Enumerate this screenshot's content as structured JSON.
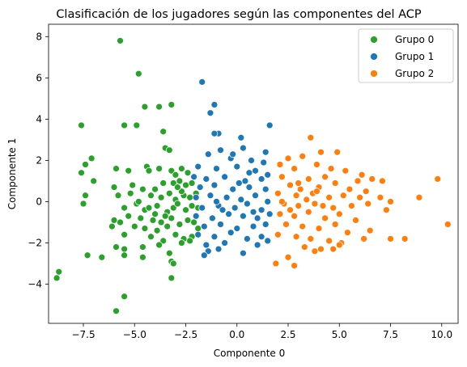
{
  "chart_data": {
    "type": "scatter",
    "title": "Clasificación de los jugadores según las componentes del ACP",
    "xlabel": "Componente 0",
    "ylabel": "Componente 1",
    "xlim": [
      -9.2,
      10.8
    ],
    "ylim": [
      -5.9,
      8.6
    ],
    "xticks": [
      "−7.5",
      "−5.0",
      "−2.5",
      "0.0",
      "2.5",
      "5.0",
      "7.5",
      "10.0"
    ],
    "xtick_values": [
      -7.5,
      -5.0,
      -2.5,
      0.0,
      2.5,
      5.0,
      7.5,
      10.0
    ],
    "yticks": [
      "−4",
      "−2",
      "0",
      "2",
      "4",
      "6",
      "8"
    ],
    "ytick_values": [
      -4,
      -2,
      0,
      2,
      4,
      6,
      8
    ],
    "grid": false,
    "legend_position": "top-right",
    "series": [
      {
        "name": "Grupo 0",
        "color": "#2ca02c",
        "points": [
          [
            -5.7,
            7.8
          ],
          [
            -4.8,
            6.2
          ],
          [
            -4.5,
            4.6
          ],
          [
            -3.8,
            4.6
          ],
          [
            -3.2,
            4.7
          ],
          [
            -7.6,
            3.7
          ],
          [
            -5.5,
            3.7
          ],
          [
            -4.9,
            3.7
          ],
          [
            -3.6,
            3.4
          ],
          [
            -3.5,
            2.6
          ],
          [
            -3.3,
            2.5
          ],
          [
            -7.1,
            2.1
          ],
          [
            -7.4,
            1.8
          ],
          [
            -7.6,
            1.4
          ],
          [
            -5.9,
            1.6
          ],
          [
            -5.3,
            1.5
          ],
          [
            -4.4,
            1.7
          ],
          [
            -4.3,
            1.5
          ],
          [
            -3.8,
            1.6
          ],
          [
            -3.2,
            1.5
          ],
          [
            -3.0,
            1.3
          ],
          [
            -2.7,
            1.6
          ],
          [
            -2.4,
            1.4
          ],
          [
            -7.0,
            1.0
          ],
          [
            -6.0,
            0.7
          ],
          [
            -5.1,
            0.8
          ],
          [
            -4.6,
            0.6
          ],
          [
            -4.0,
            0.6
          ],
          [
            -3.6,
            0.9
          ],
          [
            -3.1,
            0.9
          ],
          [
            -2.8,
            1.0
          ],
          [
            -2.5,
            0.8
          ],
          [
            -2.2,
            0.9
          ],
          [
            -7.4,
            0.3
          ],
          [
            -5.8,
            0.3
          ],
          [
            -5.2,
            0.4
          ],
          [
            -4.2,
            0.3
          ],
          [
            -3.7,
            0.2
          ],
          [
            -3.3,
            0.4
          ],
          [
            -3.0,
            0.1
          ],
          [
            -2.6,
            0.3
          ],
          [
            -2.3,
            0.2
          ],
          [
            -2.0,
            0.4
          ],
          [
            -7.5,
            -0.1
          ],
          [
            -5.5,
            -0.3
          ],
          [
            -4.9,
            -0.1
          ],
          [
            -4.5,
            -0.4
          ],
          [
            -3.9,
            -0.2
          ],
          [
            -3.4,
            -0.5
          ],
          [
            -3.1,
            -0.3
          ],
          [
            -2.9,
            -0.1
          ],
          [
            -2.5,
            -0.4
          ],
          [
            -2.2,
            -0.2
          ],
          [
            -1.9,
            -0.3
          ],
          [
            -6.0,
            -0.9
          ],
          [
            -5.3,
            -0.7
          ],
          [
            -4.7,
            -0.8
          ],
          [
            -4.1,
            -0.9
          ],
          [
            -3.7,
            -1.0
          ],
          [
            -3.2,
            -0.8
          ],
          [
            -2.8,
            -1.1
          ],
          [
            -2.4,
            -0.9
          ],
          [
            -2.1,
            -1.0
          ],
          [
            -5.0,
            -1.2
          ],
          [
            -4.5,
            -1.3
          ],
          [
            -3.9,
            -1.4
          ],
          [
            -3.4,
            -1.2
          ],
          [
            -3.0,
            -1.6
          ],
          [
            -2.6,
            -1.8
          ],
          [
            -2.2,
            -1.7
          ],
          [
            -1.9,
            -1.3
          ],
          [
            -5.5,
            -1.6
          ],
          [
            -4.2,
            -1.7
          ],
          [
            -3.6,
            -1.9
          ],
          [
            -2.7,
            -2.0
          ],
          [
            -2.3,
            -1.9
          ],
          [
            -5.9,
            -2.2
          ],
          [
            -5.5,
            -2.3
          ],
          [
            -4.6,
            -2.2
          ],
          [
            -3.8,
            -2.1
          ],
          [
            -3.3,
            -2.5
          ],
          [
            -7.3,
            -2.6
          ],
          [
            -6.6,
            -2.7
          ],
          [
            -5.5,
            -2.6
          ],
          [
            -4.6,
            -2.7
          ],
          [
            -3.2,
            -2.9
          ],
          [
            -3.1,
            -3.0
          ],
          [
            -3.2,
            -3.7
          ],
          [
            -8.7,
            -3.4
          ],
          [
            -8.8,
            -3.7
          ],
          [
            -5.5,
            -4.6
          ],
          [
            -5.9,
            -5.3
          ],
          [
            -6.1,
            -1.2
          ],
          [
            -5.7,
            -1.0
          ],
          [
            -4.0,
            -0.6
          ],
          [
            -3.5,
            -0.7
          ],
          [
            -2.7,
            0.5
          ],
          [
            -2.9,
            0.7
          ],
          [
            -4.3,
            -0.3
          ],
          [
            -4.8,
            0.0
          ]
        ]
      },
      {
        "name": "Grupo 1",
        "color": "#1f77b4",
        "points": [
          [
            -1.7,
            5.8
          ],
          [
            -1.1,
            4.7
          ],
          [
            -1.3,
            4.3
          ],
          [
            -0.9,
            3.3
          ],
          [
            -1.1,
            3.3
          ],
          [
            1.6,
            3.7
          ],
          [
            0.2,
            3.1
          ],
          [
            -0.8,
            2.5
          ],
          [
            0.3,
            2.6
          ],
          [
            1.4,
            2.4
          ],
          [
            -1.4,
            2.3
          ],
          [
            -0.3,
            2.1
          ],
          [
            0.7,
            2.0
          ],
          [
            1.3,
            1.9
          ],
          [
            -1.9,
            1.7
          ],
          [
            -1.0,
            1.6
          ],
          [
            0.0,
            1.7
          ],
          [
            0.9,
            1.5
          ],
          [
            1.5,
            1.3
          ],
          [
            -2.1,
            1.2
          ],
          [
            -1.5,
            1.1
          ],
          [
            -0.6,
            1.2
          ],
          [
            0.4,
            1.0
          ],
          [
            1.2,
            1.1
          ],
          [
            -1.8,
            0.7
          ],
          [
            -1.1,
            0.8
          ],
          [
            -0.2,
            0.6
          ],
          [
            0.6,
            0.7
          ],
          [
            1.4,
            0.6
          ],
          [
            -2.0,
            0.2
          ],
          [
            -1.3,
            0.3
          ],
          [
            -0.5,
            0.2
          ],
          [
            0.2,
            0.1
          ],
          [
            0.9,
            0.3
          ],
          [
            1.5,
            0.0
          ],
          [
            -1.7,
            -0.3
          ],
          [
            -0.9,
            -0.2
          ],
          [
            -0.1,
            -0.3
          ],
          [
            0.5,
            -0.1
          ],
          [
            1.2,
            -0.4
          ],
          [
            -2.0,
            -0.7
          ],
          [
            -1.2,
            -0.8
          ],
          [
            -0.4,
            -0.6
          ],
          [
            0.3,
            -0.7
          ],
          [
            1.0,
            -0.8
          ],
          [
            1.6,
            -0.6
          ],
          [
            -1.6,
            -1.2
          ],
          [
            -0.8,
            -1.1
          ],
          [
            0.0,
            -1.3
          ],
          [
            0.8,
            -1.2
          ],
          [
            1.4,
            -1.1
          ],
          [
            -1.9,
            -1.6
          ],
          [
            -1.1,
            -1.7
          ],
          [
            -0.3,
            -1.5
          ],
          [
            0.5,
            -1.8
          ],
          [
            1.2,
            -1.7
          ],
          [
            -1.5,
            -2.1
          ],
          [
            -0.6,
            -2.0
          ],
          [
            1.0,
            -2.1
          ],
          [
            -1.4,
            -2.4
          ],
          [
            -1.6,
            -2.6
          ],
          [
            -0.9,
            -2.3
          ],
          [
            0.3,
            -2.5
          ],
          [
            1.5,
            -1.9
          ],
          [
            -0.2,
            2.3
          ],
          [
            0.6,
            1.4
          ],
          [
            -0.7,
            -0.4
          ],
          [
            0.1,
            0.9
          ],
          [
            -1.0,
            0.0
          ],
          [
            0.8,
            -0.5
          ]
        ]
      },
      {
        "name": "Grupo 2",
        "color": "#ff7f0e",
        "points": [
          [
            3.6,
            3.1
          ],
          [
            4.1,
            2.4
          ],
          [
            3.2,
            2.2
          ],
          [
            4.9,
            2.4
          ],
          [
            2.5,
            2.1
          ],
          [
            3.9,
            1.8
          ],
          [
            4.6,
            1.6
          ],
          [
            2.1,
            1.8
          ],
          [
            5.3,
            1.5
          ],
          [
            2.8,
            1.6
          ],
          [
            6.1,
            1.3
          ],
          [
            4.3,
            1.2
          ],
          [
            3.5,
            1.1
          ],
          [
            2.2,
            1.2
          ],
          [
            5.9,
            1.0
          ],
          [
            6.6,
            1.1
          ],
          [
            7.1,
            1.0
          ],
          [
            9.8,
            1.1
          ],
          [
            2.6,
            0.8
          ],
          [
            3.1,
            0.6
          ],
          [
            4.0,
            0.7
          ],
          [
            4.8,
            0.9
          ],
          [
            5.5,
            0.6
          ],
          [
            6.3,
            0.5
          ],
          [
            2.0,
            0.4
          ],
          [
            2.9,
            0.3
          ],
          [
            3.7,
            0.4
          ],
          [
            4.5,
            0.2
          ],
          [
            5.2,
            0.3
          ],
          [
            6.0,
            0.2
          ],
          [
            7.0,
            0.2
          ],
          [
            7.5,
            0.0
          ],
          [
            8.9,
            0.2
          ],
          [
            2.3,
            -0.1
          ],
          [
            3.0,
            -0.2
          ],
          [
            3.8,
            -0.1
          ],
          [
            4.7,
            -0.3
          ],
          [
            5.6,
            -0.2
          ],
          [
            6.4,
            -0.1
          ],
          [
            7.3,
            -0.4
          ],
          [
            2.1,
            -0.6
          ],
          [
            2.8,
            -0.7
          ],
          [
            3.5,
            -0.5
          ],
          [
            4.3,
            -0.8
          ],
          [
            5.0,
            -0.6
          ],
          [
            5.8,
            -0.9
          ],
          [
            2.4,
            -1.1
          ],
          [
            3.2,
            -1.2
          ],
          [
            4.0,
            -1.3
          ],
          [
            4.8,
            -1.1
          ],
          [
            5.4,
            -1.5
          ],
          [
            6.5,
            -1.4
          ],
          [
            2.0,
            -1.6
          ],
          [
            2.9,
            -1.7
          ],
          [
            3.6,
            -1.8
          ],
          [
            4.5,
            -1.9
          ],
          [
            5.1,
            -2.0
          ],
          [
            6.2,
            -1.8
          ],
          [
            7.5,
            -1.8
          ],
          [
            8.2,
            -1.8
          ],
          [
            10.3,
            -1.1
          ],
          [
            3.3,
            -2.2
          ],
          [
            4.1,
            -2.3
          ],
          [
            5.0,
            -2.1
          ],
          [
            4.7,
            -2.3
          ],
          [
            3.8,
            -2.4
          ],
          [
            2.5,
            -2.7
          ],
          [
            2.8,
            -3.1
          ],
          [
            1.9,
            -3.0
          ],
          [
            3.0,
            0.9
          ],
          [
            2.6,
            -0.4
          ],
          [
            3.4,
            0.1
          ],
          [
            2.2,
            0.0
          ],
          [
            4.2,
            -0.2
          ],
          [
            3.9,
            0.5
          ]
        ]
      }
    ]
  }
}
